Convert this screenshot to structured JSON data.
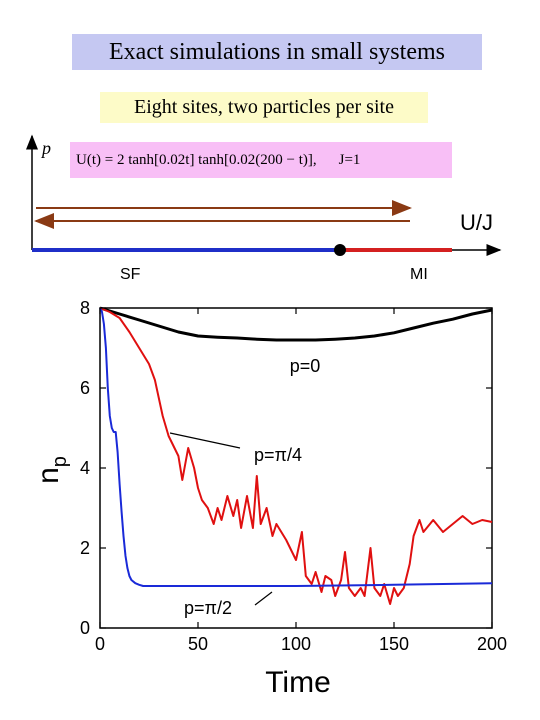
{
  "header": {
    "title": "Exact simulations in small systems",
    "subtitle": "Eight sites, two particles per site",
    "formula": "U(t) = 2 tanh[0.02t] tanh[0.02(200 − t)],",
    "formula_note": "J=1"
  },
  "phase_diagram": {
    "y_axis_label": "p",
    "x_axis_label": "U/J",
    "left_phase": "SF",
    "right_phase": "MI",
    "colors": {
      "sf": "#1f2fc8",
      "mi": "#d42020",
      "arrows": "#8a3a14"
    }
  },
  "chart_data": {
    "type": "line",
    "xlabel": "Time",
    "ylabel": "n",
    "ylabel_sub": "p",
    "xlim": [
      0,
      200
    ],
    "ylim": [
      0,
      8
    ],
    "xticks": [
      0,
      50,
      100,
      150,
      200
    ],
    "yticks": [
      0,
      2,
      4,
      6,
      8
    ],
    "series": [
      {
        "name": "p=0",
        "color": "#000000",
        "x": [
          0,
          10,
          20,
          30,
          40,
          50,
          60,
          70,
          80,
          90,
          100,
          110,
          120,
          130,
          140,
          150,
          160,
          170,
          180,
          190,
          200
        ],
        "values": [
          8.0,
          7.85,
          7.7,
          7.55,
          7.4,
          7.3,
          7.27,
          7.25,
          7.22,
          7.2,
          7.2,
          7.2,
          7.22,
          7.25,
          7.3,
          7.38,
          7.5,
          7.62,
          7.72,
          7.85,
          7.95
        ]
      },
      {
        "name": "p=π/4",
        "color": "#e01010",
        "x": [
          0,
          5,
          10,
          15,
          20,
          25,
          28,
          32,
          35,
          40,
          42,
          45,
          48,
          50,
          52,
          55,
          58,
          60,
          62,
          65,
          68,
          70,
          72,
          75,
          78,
          80,
          82,
          85,
          88,
          90,
          95,
          100,
          103,
          105,
          108,
          110,
          113,
          115,
          118,
          120,
          123,
          125,
          127,
          130,
          133,
          135,
          138,
          140,
          143,
          145,
          148,
          150,
          152,
          155,
          158,
          160,
          163,
          165,
          170,
          175,
          180,
          185,
          190,
          195,
          200
        ],
        "values": [
          8.0,
          7.9,
          7.75,
          7.4,
          7.0,
          6.6,
          6.2,
          5.3,
          4.8,
          4.3,
          3.7,
          4.5,
          4.0,
          3.5,
          3.2,
          3.0,
          2.6,
          3.0,
          2.7,
          3.3,
          2.8,
          3.2,
          2.5,
          3.3,
          2.5,
          3.8,
          2.6,
          3.0,
          2.3,
          2.6,
          2.2,
          1.7,
          2.4,
          1.3,
          1.1,
          1.4,
          0.9,
          1.3,
          1.2,
          0.8,
          1.2,
          1.9,
          1.0,
          0.8,
          1.0,
          0.8,
          2.0,
          1.0,
          0.8,
          1.1,
          0.6,
          1.0,
          0.8,
          1.0,
          1.6,
          2.3,
          2.7,
          2.4,
          2.7,
          2.4,
          2.6,
          2.8,
          2.6,
          2.7,
          2.65
        ]
      },
      {
        "name": "p=π/2",
        "color": "#1a2ad8",
        "x": [
          0,
          1,
          2,
          3,
          4,
          5,
          6,
          7,
          8,
          9,
          10,
          11,
          12,
          13,
          14,
          15,
          16,
          18,
          20,
          22,
          25,
          30,
          50,
          100,
          150,
          200
        ],
        "values": [
          8.0,
          7.9,
          7.6,
          7.0,
          6.0,
          5.3,
          5.0,
          4.9,
          4.9,
          4.4,
          3.6,
          2.9,
          2.3,
          1.8,
          1.5,
          1.3,
          1.2,
          1.12,
          1.08,
          1.05,
          1.05,
          1.05,
          1.05,
          1.05,
          1.08,
          1.12
        ]
      }
    ],
    "annotations": [
      {
        "text": "p=0",
        "series": "p=0"
      },
      {
        "text": "p=π/4",
        "series": "p=π/4"
      },
      {
        "text": "p=π/2",
        "series": "p=π/2"
      }
    ]
  }
}
